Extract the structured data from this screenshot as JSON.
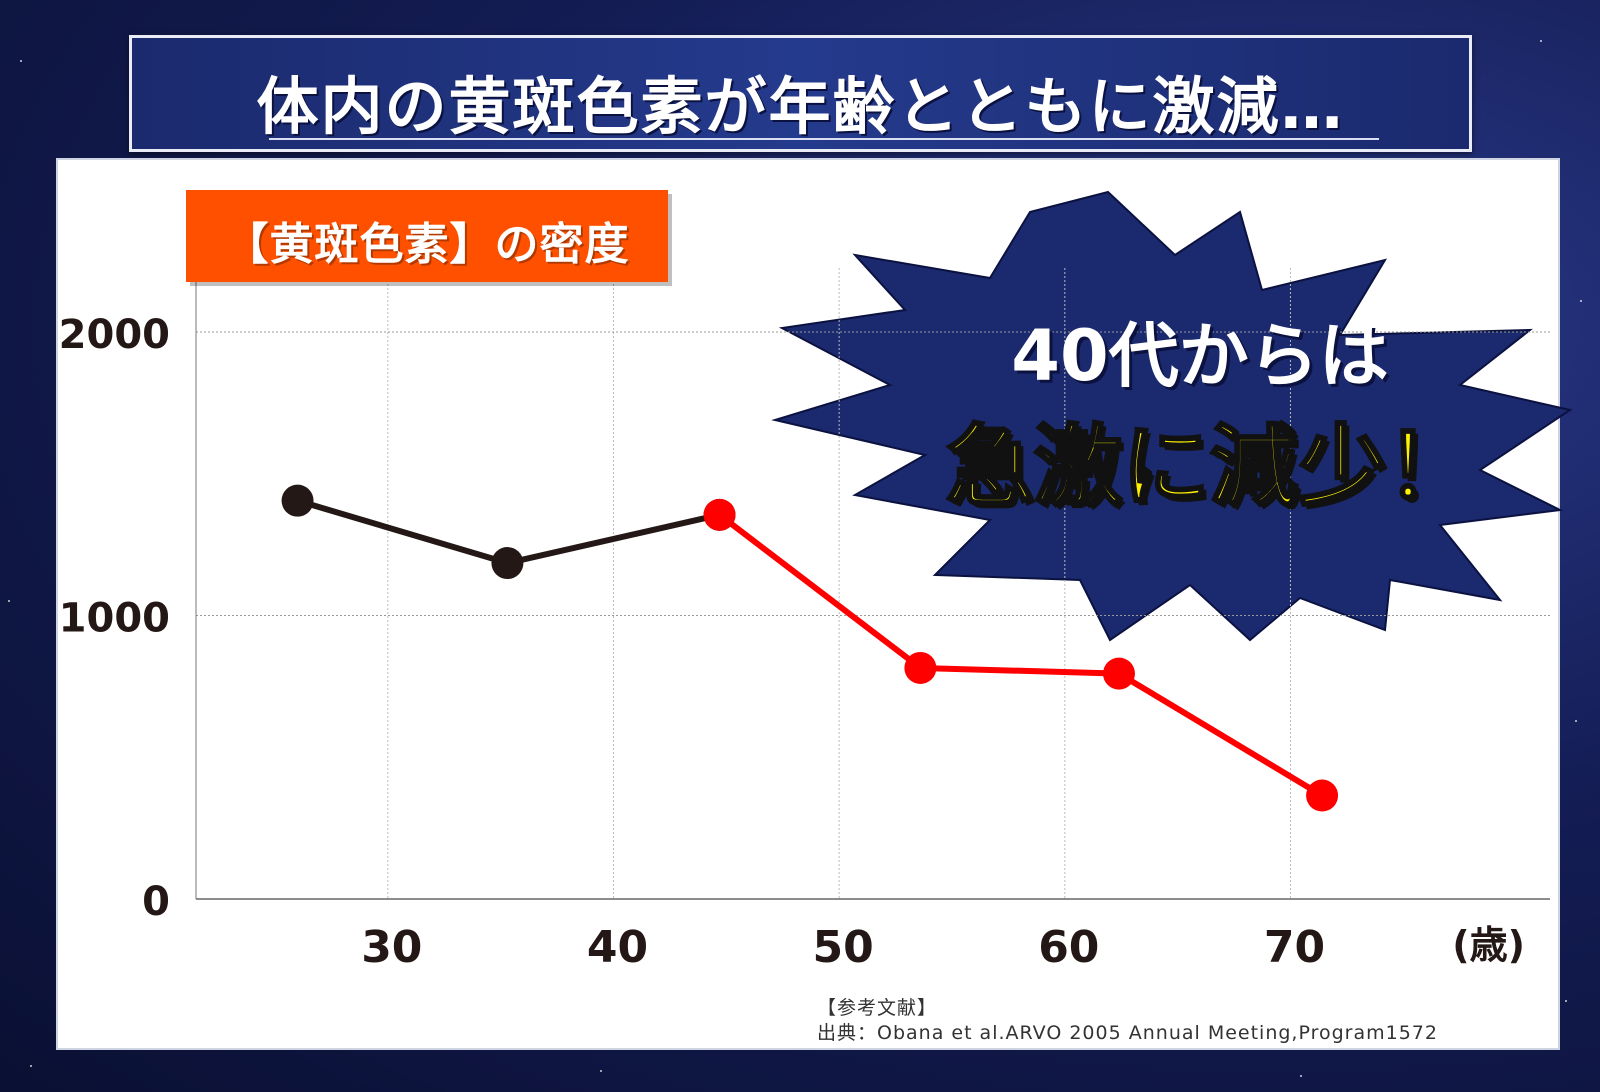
{
  "title": "体内の黄斑色素が年齢とともに激減…",
  "label": "【黄斑色素】の密度",
  "burst": {
    "line1": "40代からは",
    "line2": "急激に減少！"
  },
  "reference": {
    "heading": "【参考文献】",
    "source": "出典：Obana et al.ARVO 2005 Annual Meeting,Program1572"
  },
  "colors": {
    "normal": "#231815",
    "decline": "#ff0000",
    "burst": "#1b2a6e",
    "label_bg": "#ff5000"
  },
  "chart_data": {
    "type": "line",
    "x_unit": "(歳)",
    "x_ticks": [
      "30",
      "40",
      "50",
      "60",
      "70"
    ],
    "y_ticks": [
      "0",
      "1000",
      "2000"
    ],
    "xlim": [
      21.5,
      81.5
    ],
    "ylim": [
      0,
      2000
    ],
    "grid": true,
    "series": [
      {
        "color": "#231815",
        "x": [
          26,
          35.3,
          44.7
        ],
        "y": [
          1405,
          1185,
          1355
        ]
      },
      {
        "color": "#ff0000",
        "x": [
          44.7,
          53.6,
          62.4,
          71.4
        ],
        "y": [
          1355,
          815,
          795,
          365
        ]
      }
    ]
  }
}
